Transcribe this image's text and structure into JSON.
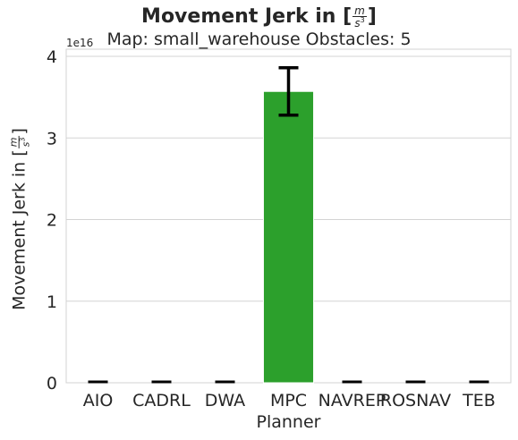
{
  "chart_data": {
    "type": "bar",
    "title_text": "Movement Jerk in [",
    "title_unit_num": "m",
    "title_unit_den": "s",
    "title_unit_exp": "3",
    "title_close": "]",
    "subtitle": "Map: small_warehouse Obstacles: 5",
    "ylabel_text": "Movement Jerk in [",
    "ylabel_unit_num": "m",
    "ylabel_unit_den": "s",
    "ylabel_unit_exp": "3",
    "ylabel_close": "]",
    "xlabel": "Planner",
    "y_multiplier": "1e16",
    "categories": [
      "AIO",
      "CADRL",
      "DWA",
      "MPC",
      "NAVREP",
      "ROSNAV",
      "TEB"
    ],
    "values": [
      0,
      0,
      0,
      3.57,
      0,
      0,
      0
    ],
    "error_low": [
      0,
      0,
      0,
      3.28,
      0,
      0,
      0
    ],
    "error_high": [
      0,
      0,
      0,
      3.86,
      0,
      0,
      0
    ],
    "ylim": [
      0,
      4.0
    ],
    "yticks": [
      0,
      1,
      2,
      3,
      4
    ],
    "grid": true,
    "bar_color": "#2ca02c",
    "error_color": "#000000",
    "grid_color": "#d3d3d3",
    "text_color": "#262626"
  }
}
